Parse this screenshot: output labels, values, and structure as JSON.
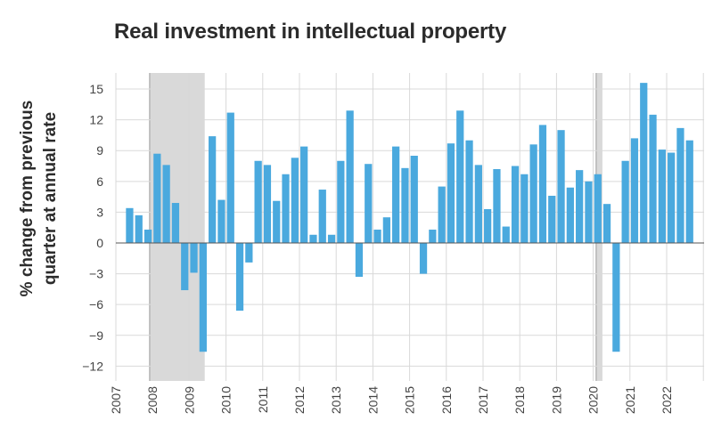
{
  "chart_data": {
    "type": "bar",
    "title": "Real investment in intellectual property",
    "ylabel": [
      "% change from previous",
      "quarter at annual rate"
    ],
    "xlabel": "",
    "ylim": [
      -13,
      16
    ],
    "yticks": [
      15,
      12,
      9,
      6,
      3,
      0,
      -3,
      -6,
      -9,
      -12
    ],
    "ytick_labels": [
      "15",
      "12",
      "9",
      "6",
      "3",
      "0",
      "−3",
      "−6",
      "−9",
      "−12"
    ],
    "xticks": [
      "2007",
      "2008",
      "2009",
      "2010",
      "2011",
      "2012",
      "2013",
      "2014",
      "2015",
      "2016",
      "2017",
      "2018",
      "2019",
      "2020",
      "2021",
      "2022"
    ],
    "first_quarter": "2007Q2",
    "categories": [
      "2007Q2",
      "2007Q3",
      "2007Q4",
      "2008Q1",
      "2008Q2",
      "2008Q3",
      "2008Q4",
      "2009Q1",
      "2009Q2",
      "2009Q3",
      "2009Q4",
      "2010Q1",
      "2010Q2",
      "2010Q3",
      "2010Q4",
      "2011Q1",
      "2011Q2",
      "2011Q3",
      "2011Q4",
      "2012Q1",
      "2012Q2",
      "2012Q3",
      "2012Q4",
      "2013Q1",
      "2013Q2",
      "2013Q3",
      "2013Q4",
      "2014Q1",
      "2014Q2",
      "2014Q3",
      "2014Q4",
      "2015Q1",
      "2015Q2",
      "2015Q3",
      "2015Q4",
      "2016Q1",
      "2016Q2",
      "2016Q3",
      "2016Q4",
      "2017Q1",
      "2017Q2",
      "2017Q3",
      "2017Q4",
      "2018Q1",
      "2018Q2",
      "2018Q3",
      "2018Q4",
      "2019Q1",
      "2019Q2",
      "2019Q3",
      "2019Q4",
      "2020Q1",
      "2020Q2",
      "2020Q3",
      "2020Q4",
      "2021Q1",
      "2021Q2",
      "2021Q3",
      "2021Q4",
      "2022Q1",
      "2022Q2",
      "2022Q3"
    ],
    "values": [
      3.4,
      2.7,
      1.3,
      8.7,
      7.6,
      3.9,
      -4.6,
      -2.9,
      -10.6,
      10.4,
      4.2,
      12.7,
      -6.6,
      -1.9,
      8.0,
      7.6,
      4.1,
      6.7,
      8.3,
      9.4,
      0.8,
      5.2,
      0.8,
      8.0,
      12.9,
      -3.3,
      7.7,
      1.3,
      2.5,
      9.4,
      7.3,
      8.5,
      -3.0,
      1.3,
      5.5,
      9.7,
      12.9,
      10.0,
      7.6,
      3.3,
      7.2,
      1.6,
      7.5,
      6.7,
      9.6,
      11.5,
      4.6,
      11.0,
      5.4,
      7.1,
      6.0,
      6.7,
      3.8,
      -10.6,
      8.0,
      10.2,
      15.6,
      12.5,
      9.1,
      8.8,
      11.2,
      10.0
    ],
    "recessions": [
      {
        "start": 2007.92,
        "end": 2009.42
      },
      {
        "start": 2020.08,
        "end": 2020.25
      }
    ],
    "grid": true,
    "legend": "none",
    "colors": {
      "bar": "#4aa9de",
      "recession": "#d9d9d9",
      "grid": "#d9d9d9",
      "zero_line": "#555555",
      "recession_edge": "#9a9a9a"
    }
  }
}
